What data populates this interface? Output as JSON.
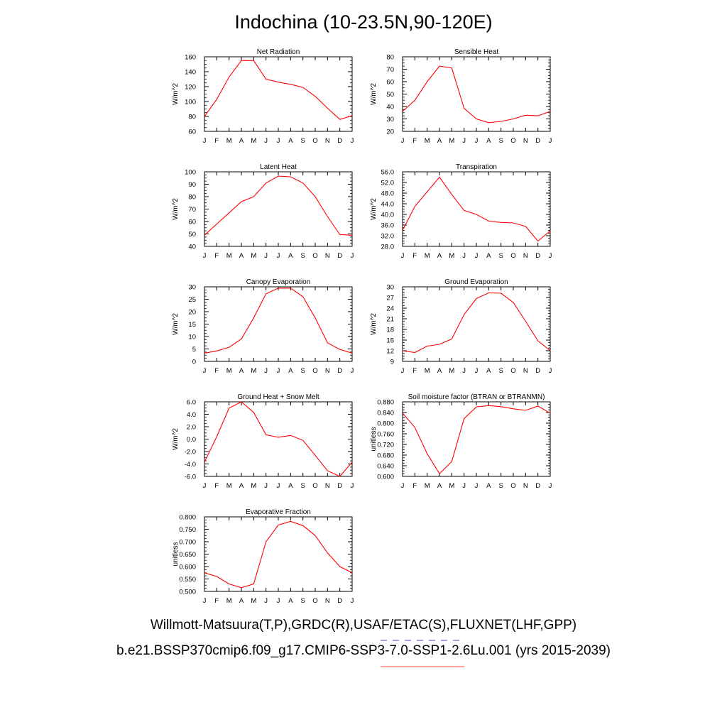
{
  "title": "Indochina (10-23.5N,90-120E)",
  "footer": {
    "obs_line": "Willmott-Matsuura(T,P),GRDC(R),USAF/ETAC(S),FLUXNET(LHF,GPP)",
    "case_line": "b.e21.BSSP370cmip6.f09_g17.CMIP6-SSP3-7.0-SSP1-2.6Lu.001 (yrs 2015-2039)",
    "obs_dash_color": "#6b6bd6",
    "case_line_color": "#ff6b6b"
  },
  "colors": {
    "series": "#ff0000",
    "axis": "#000000",
    "background": "#ffffff"
  },
  "chart_data": [
    {
      "type": "line",
      "title": "Net Radiation",
      "ylabel": "W/m^2",
      "categories": [
        "J",
        "F",
        "M",
        "A",
        "M",
        "J",
        "J",
        "A",
        "S",
        "O",
        "N",
        "D",
        "J"
      ],
      "ylim": [
        60,
        160
      ],
      "yticks": [
        "60",
        "80",
        "100",
        "120",
        "140",
        "160"
      ],
      "values": [
        80,
        103,
        133,
        155,
        155,
        130,
        126,
        123,
        119,
        107,
        91,
        76,
        81
      ]
    },
    {
      "type": "line",
      "title": "Sensible Heat",
      "ylabel": "W/m^2",
      "categories": [
        "J",
        "F",
        "M",
        "A",
        "M",
        "J",
        "J",
        "A",
        "S",
        "O",
        "N",
        "D",
        "J"
      ],
      "ylim": [
        20,
        80
      ],
      "yticks": [
        "20",
        "30",
        "40",
        "50",
        "60",
        "70",
        "80"
      ],
      "values": [
        36,
        45,
        60,
        72.5,
        71,
        38.5,
        30,
        27,
        28,
        30,
        33,
        32.5,
        36
      ]
    },
    {
      "type": "line",
      "title": "Latent Heat",
      "ylabel": "W/m^2",
      "categories": [
        "J",
        "F",
        "M",
        "A",
        "M",
        "J",
        "J",
        "A",
        "S",
        "O",
        "N",
        "D",
        "J"
      ],
      "ylim": [
        40,
        100
      ],
      "yticks": [
        "40",
        "50",
        "60",
        "70",
        "80",
        "90",
        "100"
      ],
      "values": [
        49,
        58,
        67,
        76,
        80,
        91,
        96.5,
        96,
        91,
        80,
        64,
        49.5,
        49
      ]
    },
    {
      "type": "line",
      "title": "Transpiration",
      "ylabel": "W/m^2",
      "categories": [
        "J",
        "F",
        "M",
        "A",
        "M",
        "J",
        "J",
        "A",
        "S",
        "O",
        "N",
        "D",
        "J"
      ],
      "ylim": [
        28,
        56
      ],
      "yticks": [
        "28.0",
        "32.0",
        "36.0",
        "40.0",
        "44.0",
        "48.0",
        "52.0",
        "56.0"
      ],
      "values": [
        34,
        43,
        48.5,
        54,
        47.5,
        41.5,
        40,
        37.5,
        37,
        36.8,
        35.5,
        30,
        33.8
      ]
    },
    {
      "type": "line",
      "title": "Canopy Evaporation",
      "ylabel": "W/m^2",
      "categories": [
        "J",
        "F",
        "M",
        "A",
        "M",
        "J",
        "J",
        "A",
        "S",
        "O",
        "N",
        "D",
        "J"
      ],
      "ylim": [
        0,
        30
      ],
      "yticks": [
        "0",
        "5",
        "10",
        "15",
        "20",
        "25",
        "30"
      ],
      "values": [
        3.3,
        4.2,
        5.7,
        9,
        17.5,
        27.2,
        29.5,
        29.5,
        26,
        17.5,
        7.5,
        4.8,
        3.3
      ]
    },
    {
      "type": "line",
      "title": "Ground Evaporation",
      "ylabel": "W/m^2",
      "categories": [
        "J",
        "F",
        "M",
        "A",
        "M",
        "J",
        "J",
        "A",
        "S",
        "O",
        "N",
        "D",
        "J"
      ],
      "ylim": [
        9,
        30
      ],
      "yticks": [
        "9",
        "12",
        "15",
        "18",
        "21",
        "24",
        "27",
        "30"
      ],
      "values": [
        12,
        11.5,
        13.3,
        13.8,
        15.3,
        22.2,
        26.7,
        28.3,
        28.2,
        25.6,
        20.3,
        14.8,
        12
      ]
    },
    {
      "type": "line",
      "title": "Ground Heat + Snow Melt",
      "ylabel": "W/m^2",
      "categories": [
        "J",
        "F",
        "M",
        "A",
        "M",
        "J",
        "J",
        "A",
        "S",
        "O",
        "N",
        "D",
        "J"
      ],
      "ylim": [
        -6,
        6
      ],
      "yticks": [
        "-6.0",
        "-4.0",
        "-2.0",
        "0.0",
        "2.0",
        "4.0",
        "6.0"
      ],
      "values": [
        -3.7,
        0.4,
        5,
        6,
        4.3,
        0.7,
        0.3,
        0.6,
        -0.2,
        -2.6,
        -5.1,
        -6,
        -3.7
      ]
    },
    {
      "type": "line",
      "title": "Soil moisture factor (BTRAN or BTRANMN)",
      "ylabel": "unitless",
      "categories": [
        "J",
        "F",
        "M",
        "A",
        "M",
        "J",
        "J",
        "A",
        "S",
        "O",
        "N",
        "D",
        "J"
      ],
      "ylim": [
        0.6,
        0.88
      ],
      "yticks": [
        "0.600",
        "0.640",
        "0.680",
        "0.720",
        "0.760",
        "0.800",
        "0.840",
        "0.880"
      ],
      "values": [
        0.838,
        0.784,
        0.685,
        0.61,
        0.656,
        0.817,
        0.861,
        0.866,
        0.862,
        0.854,
        0.848,
        0.864,
        0.838
      ]
    },
    {
      "type": "line",
      "title": "Evaporative Fraction",
      "ylabel": "unitless",
      "categories": [
        "J",
        "F",
        "M",
        "A",
        "M",
        "J",
        "J",
        "A",
        "S",
        "O",
        "N",
        "D",
        "J"
      ],
      "ylim": [
        0.5,
        0.8
      ],
      "yticks": [
        "0.500",
        "0.550",
        "0.600",
        "0.650",
        "0.700",
        "0.750",
        "0.800"
      ],
      "values": [
        0.575,
        0.56,
        0.53,
        0.515,
        0.53,
        0.7,
        0.767,
        0.782,
        0.765,
        0.725,
        0.655,
        0.6,
        0.575
      ]
    }
  ]
}
